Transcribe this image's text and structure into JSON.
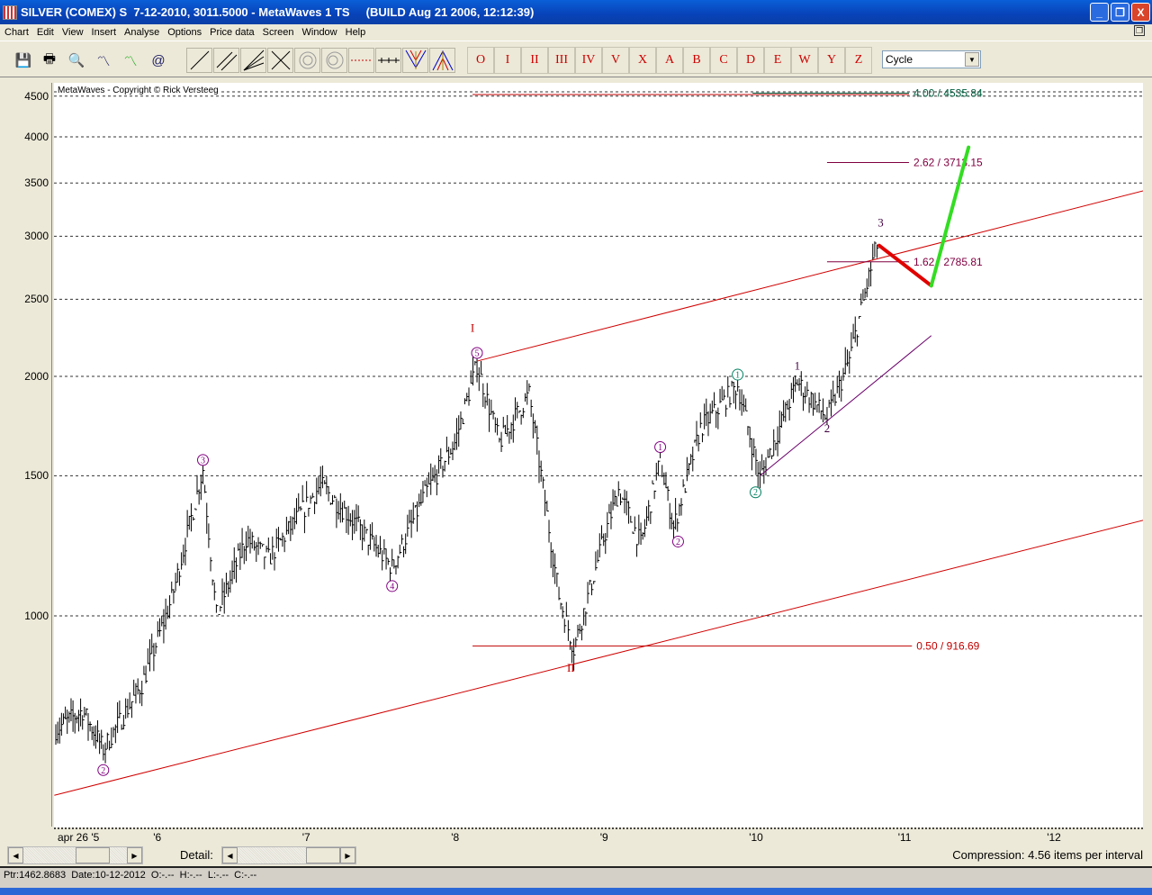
{
  "window": {
    "title": "SILVER (COMEX) S  7-12-2010, 3011.5000 - MetaWaves 1 TS     (BUILD Aug 21 2006, 12:12:39)",
    "minimize": "_",
    "restore": "❐",
    "close": "X"
  },
  "menu": [
    "Chart",
    "Edit",
    "View",
    "Insert",
    "Analyse",
    "Options",
    "Price data",
    "Screen",
    "Window",
    "Help"
  ],
  "file_tools": [
    "save-icon",
    "print-icon",
    "print-preview-icon",
    "zoom-go-icon",
    "wave-marker-icon",
    "wave-email-icon"
  ],
  "draw_tools": [
    "line-icon",
    "parallel-lines-icon",
    "fan-lines-icon",
    "cross-lines-icon",
    "spiral-icon",
    "circle-icon",
    "dashed-horizontal-icon",
    "time-ruler-icon",
    "fork-down-icon",
    "fork-up-icon"
  ],
  "wave_labels": [
    "O",
    "I",
    "II",
    "III",
    "IV",
    "V",
    "X",
    "A",
    "B",
    "C",
    "D",
    "E",
    "W",
    "Y",
    "Z"
  ],
  "degree_select": {
    "value": "Cycle"
  },
  "chart": {
    "copyright": "MetaWaves - Copyright © Rick Versteeg",
    "compression": "Compression: 4.56 items per interval",
    "detail_label": "Detail:"
  },
  "status": {
    "text": "Ptr:1462.8683  Date:10-12-2012  O:-.--  H:-.--  L:-.--  C:-.--"
  },
  "chart_data": {
    "type": "bar",
    "y_scale": "log",
    "ylim": [
      600,
      4700
    ],
    "y_ticks": [
      1000,
      1500,
      2000,
      2500,
      3000,
      3500,
      4000,
      4500
    ],
    "x_ticks": [
      {
        "label": "apr 26 '5",
        "x": 2005.32
      },
      {
        "label": "'6",
        "x": 2006
      },
      {
        "label": "'7",
        "x": 2007
      },
      {
        "label": "'8",
        "x": 2008
      },
      {
        "label": "'9",
        "x": 2009
      },
      {
        "label": "'10",
        "x": 2010
      },
      {
        "label": "'11",
        "x": 2011
      },
      {
        "label": "'12",
        "x": 2012
      }
    ],
    "xlim": [
      2005.31,
      2012.7
    ],
    "grid": "horizontal dashed",
    "price_swings": [
      [
        2005.32,
        720
      ],
      [
        2005.5,
        760
      ],
      [
        2005.64,
        680
      ],
      [
        2005.9,
        820
      ],
      [
        2006.1,
        1050
      ],
      [
        2006.31,
        1530
      ],
      [
        2006.4,
        1000
      ],
      [
        2006.6,
        1250
      ],
      [
        2006.75,
        1180
      ],
      [
        2007.1,
        1460
      ],
      [
        2007.3,
        1330
      ],
      [
        2007.58,
        1150
      ],
      [
        2007.8,
        1420
      ],
      [
        2008.0,
        1650
      ],
      [
        2008.15,
        2070
      ],
      [
        2008.3,
        1650
      ],
      [
        2008.5,
        1900
      ],
      [
        2008.7,
        1060
      ],
      [
        2008.8,
        910
      ],
      [
        2009.0,
        1250
      ],
      [
        2009.1,
        1440
      ],
      [
        2009.25,
        1230
      ],
      [
        2009.38,
        1570
      ],
      [
        2009.47,
        1290
      ],
      [
        2009.65,
        1720
      ],
      [
        2009.9,
        1950
      ],
      [
        2010.05,
        1490
      ],
      [
        2010.3,
        1970
      ],
      [
        2010.5,
        1770
      ],
      [
        2010.65,
        2100
      ],
      [
        2010.82,
        2860
      ],
      [
        2010.85,
        2980
      ]
    ],
    "wave_labels": [
      {
        "text": "2",
        "x": 2005.64,
        "y": 640,
        "style": "circle",
        "color": "#800080"
      },
      {
        "text": "3",
        "x": 2006.31,
        "y": 1570,
        "style": "circle",
        "color": "#800080"
      },
      {
        "text": "4",
        "x": 2007.58,
        "y": 1090,
        "style": "circle",
        "color": "#800080"
      },
      {
        "text": "5",
        "x": 2008.15,
        "y": 2140,
        "style": "circle",
        "color": "#800080"
      },
      {
        "text": "I",
        "x": 2008.12,
        "y": 2300,
        "style": "plain",
        "color": "#c00000"
      },
      {
        "text": "II",
        "x": 2008.78,
        "y": 860,
        "style": "plain",
        "color": "#c00000"
      },
      {
        "text": "1",
        "x": 2009.38,
        "y": 1630,
        "style": "circle",
        "color": "#800080"
      },
      {
        "text": "2",
        "x": 2009.5,
        "y": 1240,
        "style": "circle",
        "color": "#800080"
      },
      {
        "text": "1",
        "x": 2009.9,
        "y": 2010,
        "style": "circle",
        "color": "#008060"
      },
      {
        "text": "2",
        "x": 2010.02,
        "y": 1430,
        "style": "circle",
        "color": "#008060"
      },
      {
        "text": "1",
        "x": 2010.3,
        "y": 2060,
        "style": "plain",
        "color": "#400040"
      },
      {
        "text": "2",
        "x": 2010.5,
        "y": 1720,
        "style": "plain",
        "color": "#400040"
      },
      {
        "text": "3",
        "x": 2010.86,
        "y": 3120,
        "style": "plain",
        "color": "#400040"
      }
    ],
    "fib_levels": [
      {
        "label": "4.00 / 4535.84",
        "value": 4540,
        "x0": 2010.0,
        "x1": 2011.05,
        "color": "#006040"
      },
      {
        "label": "2.62 / 3713.15",
        "value": 3713.15,
        "x0": 2010.5,
        "x1": 2011.05,
        "color": "#800040"
      },
      {
        "label": "1.62 / 2785.81",
        "value": 2785.81,
        "x0": 2010.5,
        "x1": 2011.05,
        "color": "#800040"
      },
      {
        "label": "0.50 / 916.69",
        "value": 916.69,
        "x0": 2008.12,
        "x1": 2011.07,
        "color": "#c00000"
      }
    ],
    "trend_lines": [
      {
        "from": [
          2008.15,
          2090
        ],
        "to": [
          2012.7,
          3450
        ],
        "color": "#d00000",
        "width": 1
      },
      {
        "from": [
          2005.31,
          595
        ],
        "to": [
          2012.7,
          1330
        ],
        "color": "#d00000",
        "width": 1
      },
      {
        "from": [
          2010.05,
          1500
        ],
        "to": [
          2011.2,
          2250
        ],
        "color": "#6a006a",
        "width": 1
      }
    ],
    "projection": [
      {
        "from": [
          2010.85,
          2920
        ],
        "to": [
          2011.2,
          2600
        ],
        "color": "#e00000",
        "width": 4
      },
      {
        "from": [
          2011.2,
          2600
        ],
        "to": [
          2011.45,
          3880
        ],
        "color": "#33dd22",
        "width": 4
      }
    ]
  }
}
